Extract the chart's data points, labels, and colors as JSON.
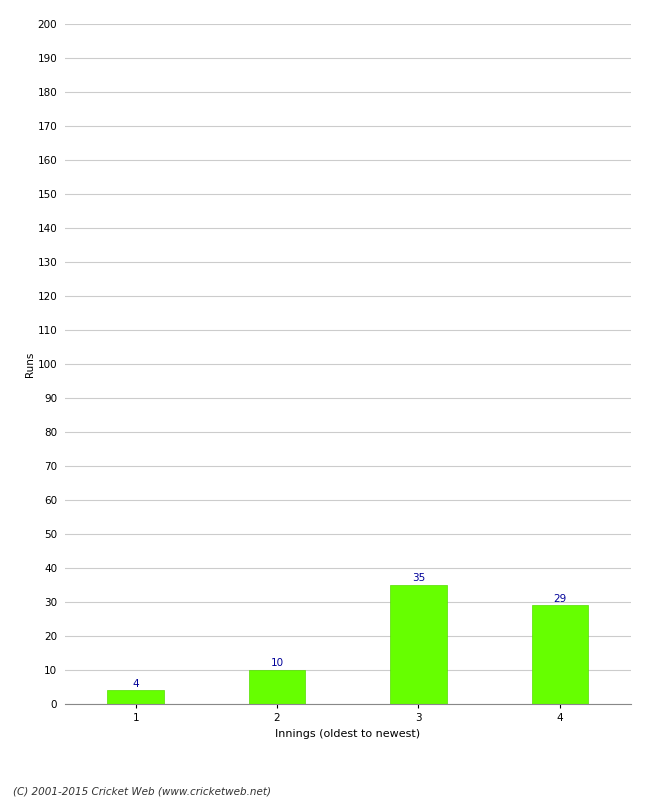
{
  "categories": [
    "1",
    "2",
    "3",
    "4"
  ],
  "values": [
    4,
    10,
    35,
    29
  ],
  "bar_color": "#66ff00",
  "bar_edge_color": "#55dd00",
  "label_color": "#000099",
  "ylabel": "Runs",
  "xlabel": "Innings (oldest to newest)",
  "ylim": [
    0,
    200
  ],
  "yticks": [
    0,
    10,
    20,
    30,
    40,
    50,
    60,
    70,
    80,
    90,
    100,
    110,
    120,
    130,
    140,
    150,
    160,
    170,
    180,
    190,
    200
  ],
  "footer": "(C) 2001-2015 Cricket Web (www.cricketweb.net)",
  "background_color": "#ffffff",
  "grid_color": "#cccccc",
  "bar_width": 0.4,
  "label_fontsize": 7.5,
  "ylabel_fontsize": 7.5,
  "xlabel_fontsize": 8,
  "tick_fontsize": 7.5,
  "footer_fontsize": 7.5
}
